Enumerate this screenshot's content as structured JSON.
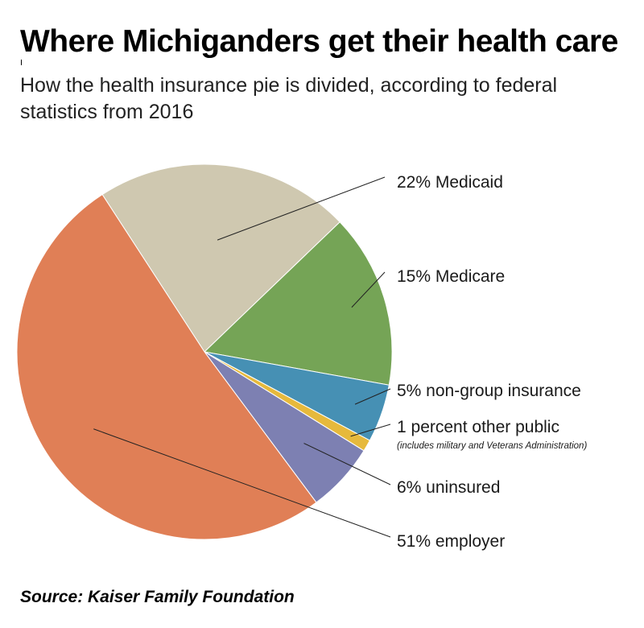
{
  "header": {
    "title": "Where Michiganders get their health care",
    "subtitle": "How the health insurance pie is divided, according to federal statistics from 2016"
  },
  "chart_data": {
    "type": "pie",
    "slices": [
      {
        "name": "Medicaid",
        "value": 22,
        "label": "22% Medicaid",
        "color": "#cfc8b0"
      },
      {
        "name": "Medicare",
        "value": 15,
        "label": "15% Medicare",
        "color": "#75a456"
      },
      {
        "name": "non-group insurance",
        "value": 5,
        "label": "5% non-group insurance",
        "color": "#4690b4"
      },
      {
        "name": "other public",
        "value": 1,
        "label": "1 percent other public",
        "note": "(includes military and Veterans Administration)",
        "color": "#e6b93c"
      },
      {
        "name": "uninsured",
        "value": 6,
        "label": "6% uninsured",
        "color": "#7d80b2"
      },
      {
        "name": "employer",
        "value": 51,
        "label": "51% employer",
        "color": "#e07f56"
      }
    ]
  },
  "footer": {
    "source": "Source: Kaiser Family Foundation"
  }
}
